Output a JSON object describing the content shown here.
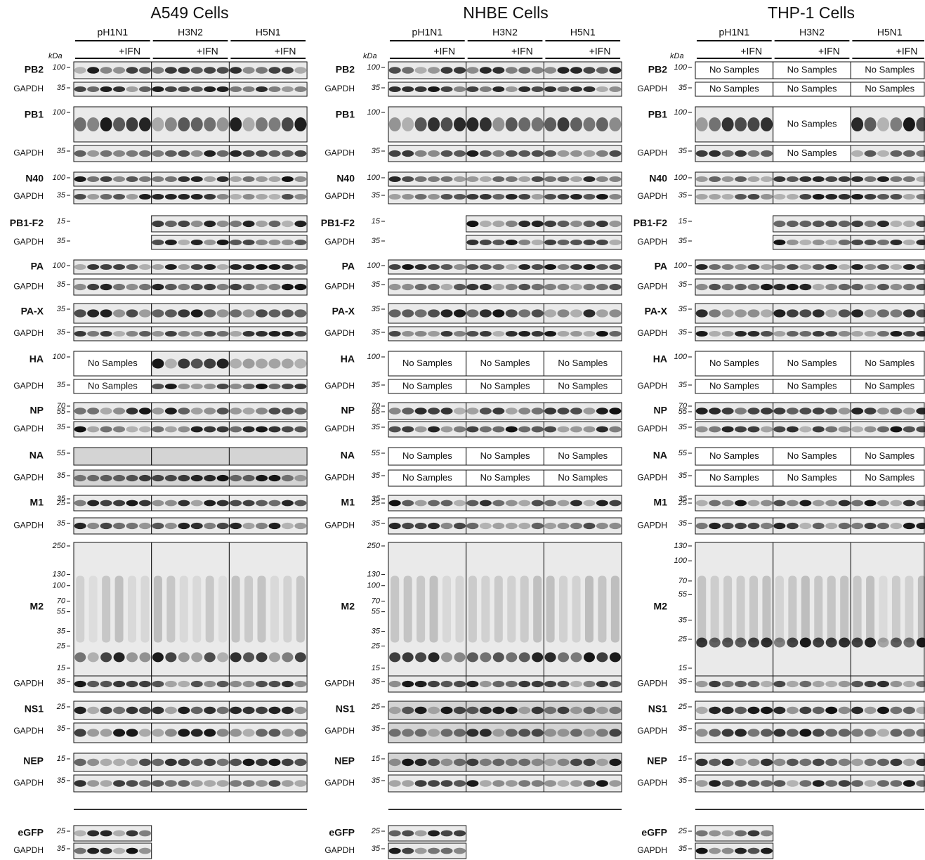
{
  "panels": [
    {
      "title": "A549 Cells",
      "strains": [
        "pH1N1",
        "H3N2",
        "H5N1"
      ],
      "ifn": "+IFN",
      "kda": "kDa",
      "rows": [
        {
          "label": "PB2",
          "markers": [
            "100"
          ]
        },
        {
          "label": "GAPDH",
          "markers": [
            "35"
          ]
        },
        {
          "label": "PB1",
          "markers": [
            "100"
          ]
        },
        {
          "label": "GAPDH",
          "markers": [
            "35"
          ]
        },
        {
          "label": "N40",
          "markers": [
            "100"
          ]
        },
        {
          "label": "GAPDH",
          "markers": [
            "35"
          ]
        },
        {
          "label": "PB1-F2",
          "markers": [
            "15"
          ]
        },
        {
          "label": "GAPDH",
          "markers": [
            "35"
          ]
        },
        {
          "label": "PA",
          "markers": [
            "100"
          ]
        },
        {
          "label": "GAPDH",
          "markers": [
            "35"
          ]
        },
        {
          "label": "PA-X",
          "markers": [
            "35"
          ]
        },
        {
          "label": "GAPDH",
          "markers": [
            "35"
          ]
        },
        {
          "label": "HA",
          "markers": [
            "100"
          ],
          "notes": [
            {
              "strain": "pH1N1",
              "text": "No Samples"
            }
          ]
        },
        {
          "label": "GAPDH",
          "markers": [
            "35"
          ],
          "notes": [
            {
              "strain": "pH1N1",
              "text": "No Samples"
            }
          ]
        },
        {
          "label": "NP",
          "markers": [
            "70",
            "55"
          ]
        },
        {
          "label": "GAPDH",
          "markers": [
            "35"
          ]
        },
        {
          "label": "NA",
          "markers": [
            "55"
          ]
        },
        {
          "label": "GAPDH",
          "markers": [
            "35"
          ]
        },
        {
          "label": "M1",
          "markers": [
            "35",
            "25"
          ]
        },
        {
          "label": "GAPDH",
          "markers": [
            "35"
          ]
        },
        {
          "label": "M2",
          "markers": [
            "250",
            "130",
            "100",
            "70",
            "55",
            "35",
            "25",
            "15"
          ]
        },
        {
          "label": "GAPDH",
          "markers": [
            "35"
          ]
        },
        {
          "label": "NS1",
          "markers": [
            "25"
          ]
        },
        {
          "label": "GAPDH",
          "markers": [
            "35"
          ]
        },
        {
          "label": "NEP",
          "markers": [
            "15"
          ]
        },
        {
          "label": "GAPDH",
          "markers": [
            "35"
          ]
        },
        {
          "label": "eGFP",
          "markers": [
            "25"
          ]
        },
        {
          "label": "GAPDH",
          "markers": [
            "35"
          ]
        }
      ]
    },
    {
      "title": "NHBE Cells",
      "strains": [
        "pH1N1",
        "H3N2",
        "H5N1"
      ],
      "ifn": "+IFN",
      "kda": "kDa",
      "rows": [
        {
          "label": "PB2",
          "markers": [
            "100"
          ]
        },
        {
          "label": "GAPDH",
          "markers": [
            "35"
          ]
        },
        {
          "label": "PB1",
          "markers": [
            "100"
          ]
        },
        {
          "label": "GAPDH",
          "markers": [
            "35"
          ]
        },
        {
          "label": "N40",
          "markers": [
            "100"
          ]
        },
        {
          "label": "GAPDH",
          "markers": [
            "35"
          ]
        },
        {
          "label": "PB1-F2",
          "markers": [
            "15"
          ]
        },
        {
          "label": "GAPDH",
          "markers": [
            "35"
          ]
        },
        {
          "label": "PA",
          "markers": [
            "100"
          ]
        },
        {
          "label": "GAPDH",
          "markers": [
            "35"
          ]
        },
        {
          "label": "PA-X",
          "markers": [
            "35"
          ]
        },
        {
          "label": "GAPDH",
          "markers": [
            "35"
          ]
        },
        {
          "label": "HA",
          "markers": [
            "100"
          ],
          "notes": [
            {
              "strain": "pH1N1",
              "text": "No Samples"
            },
            {
              "strain": "H3N2",
              "text": "No Samples"
            },
            {
              "strain": "H5N1",
              "text": "No Samples"
            }
          ]
        },
        {
          "label": "GAPDH",
          "markers": [
            "35"
          ],
          "notes": [
            {
              "strain": "pH1N1",
              "text": "No Samples"
            },
            {
              "strain": "H3N2",
              "text": "No Samples"
            },
            {
              "strain": "H5N1",
              "text": "No Samples"
            }
          ]
        },
        {
          "label": "NP",
          "markers": [
            "70",
            "55"
          ]
        },
        {
          "label": "GAPDH",
          "markers": [
            "35"
          ]
        },
        {
          "label": "NA",
          "markers": [
            "55"
          ],
          "notes": [
            {
              "strain": "pH1N1",
              "text": "No Samples"
            },
            {
              "strain": "H3N2",
              "text": "No Samples"
            },
            {
              "strain": "H5N1",
              "text": "No Samples"
            }
          ]
        },
        {
          "label": "GAPDH",
          "markers": [
            "35"
          ],
          "notes": [
            {
              "strain": "pH1N1",
              "text": "No Samples"
            },
            {
              "strain": "H3N2",
              "text": "No Samples"
            },
            {
              "strain": "H5N1",
              "text": "No Samples"
            }
          ]
        },
        {
          "label": "M1",
          "markers": [
            "35",
            "25"
          ]
        },
        {
          "label": "GAPDH",
          "markers": [
            "35"
          ]
        },
        {
          "label": "M2",
          "markers": [
            "250",
            "130",
            "100",
            "70",
            "55",
            "35",
            "25",
            "15"
          ]
        },
        {
          "label": "GAPDH",
          "markers": [
            "35"
          ]
        },
        {
          "label": "NS1",
          "markers": [
            "25"
          ]
        },
        {
          "label": "GAPDH",
          "markers": [
            "35"
          ]
        },
        {
          "label": "NEP",
          "markers": [
            "15"
          ]
        },
        {
          "label": "GAPDH",
          "markers": [
            "35"
          ]
        },
        {
          "label": "eGFP",
          "markers": [
            "25"
          ]
        },
        {
          "label": "GAPDH",
          "markers": [
            "35"
          ]
        }
      ]
    },
    {
      "title": "THP-1 Cells",
      "strains": [
        "pH1N1",
        "H3N2",
        "H5N1"
      ],
      "ifn": "+IFN",
      "kda": "kDa",
      "rows": [
        {
          "label": "PB2",
          "markers": [
            "100"
          ],
          "notes": [
            {
              "strain": "pH1N1",
              "text": "No Samples"
            },
            {
              "strain": "H3N2",
              "text": "No Samples"
            },
            {
              "strain": "H5N1",
              "text": "No Samples"
            }
          ]
        },
        {
          "label": "GAPDH",
          "markers": [
            "35"
          ],
          "notes": [
            {
              "strain": "pH1N1",
              "text": "No Samples"
            },
            {
              "strain": "H3N2",
              "text": "No Samples"
            },
            {
              "strain": "H5N1",
              "text": "No Samples"
            }
          ]
        },
        {
          "label": "PB1",
          "markers": [
            "100"
          ],
          "notes": [
            {
              "strain": "H3N2",
              "text": "No Samples"
            }
          ]
        },
        {
          "label": "GAPDH",
          "markers": [
            "35"
          ],
          "notes": [
            {
              "strain": "H3N2",
              "text": "No Samples"
            }
          ]
        },
        {
          "label": "N40",
          "markers": [
            "100"
          ]
        },
        {
          "label": "GAPDH",
          "markers": [
            "35"
          ]
        },
        {
          "label": "PB1-F2",
          "markers": [
            "15"
          ]
        },
        {
          "label": "GAPDH",
          "markers": [
            "35"
          ]
        },
        {
          "label": "PA",
          "markers": [
            "100"
          ]
        },
        {
          "label": "GAPDH",
          "markers": [
            "35"
          ]
        },
        {
          "label": "PA-X",
          "markers": [
            "35"
          ]
        },
        {
          "label": "GAPDH",
          "markers": [
            "35"
          ]
        },
        {
          "label": "HA",
          "markers": [
            "100"
          ],
          "notes": [
            {
              "strain": "pH1N1",
              "text": "No Samples"
            },
            {
              "strain": "H3N2",
              "text": "No Samples"
            },
            {
              "strain": "H5N1",
              "text": "No Samples"
            }
          ]
        },
        {
          "label": "GAPDH",
          "markers": [
            "35"
          ],
          "notes": [
            {
              "strain": "pH1N1",
              "text": "No Samples"
            },
            {
              "strain": "H3N2",
              "text": "No Samples"
            },
            {
              "strain": "H5N1",
              "text": "No Samples"
            }
          ]
        },
        {
          "label": "NP",
          "markers": [
            "70",
            "55"
          ]
        },
        {
          "label": "GAPDH",
          "markers": [
            "35"
          ]
        },
        {
          "label": "NA",
          "markers": [
            "55"
          ],
          "notes": [
            {
              "strain": "pH1N1",
              "text": "No Samples"
            },
            {
              "strain": "H3N2",
              "text": "No Samples"
            },
            {
              "strain": "H5N1",
              "text": "No Samples"
            }
          ]
        },
        {
          "label": "GAPDH",
          "markers": [
            "35"
          ],
          "notes": [
            {
              "strain": "pH1N1",
              "text": "No Samples"
            },
            {
              "strain": "H3N2",
              "text": "No Samples"
            },
            {
              "strain": "H5N1",
              "text": "No Samples"
            }
          ]
        },
        {
          "label": "M1",
          "markers": [
            "35",
            "25"
          ]
        },
        {
          "label": "GAPDH",
          "markers": [
            "35"
          ]
        },
        {
          "label": "M2",
          "markers": [
            "130",
            "100",
            "70",
            "55",
            "35",
            "25",
            "15"
          ]
        },
        {
          "label": "GAPDH",
          "markers": [
            "35"
          ]
        },
        {
          "label": "NS1",
          "markers": [
            "25"
          ]
        },
        {
          "label": "GAPDH",
          "markers": [
            "35"
          ]
        },
        {
          "label": "NEP",
          "markers": [
            "15"
          ]
        },
        {
          "label": "GAPDH",
          "markers": [
            "35"
          ]
        },
        {
          "label": "eGFP",
          "markers": [
            "25"
          ]
        },
        {
          "label": "GAPDH",
          "markers": [
            "35"
          ]
        }
      ]
    }
  ]
}
